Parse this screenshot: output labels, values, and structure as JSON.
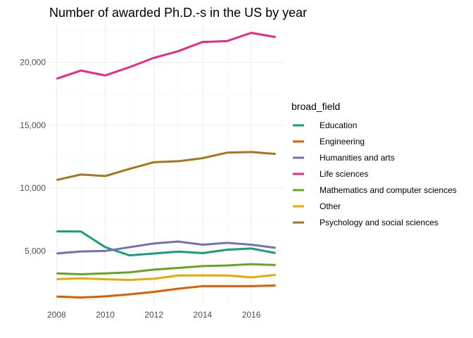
{
  "chart_data": {
    "type": "line",
    "title": "Number of awarded Ph.D.-s in the US by year",
    "xlabel": "",
    "ylabel": "",
    "x": [
      2008,
      2009,
      2010,
      2011,
      2012,
      2013,
      2014,
      2015,
      2016,
      2017
    ],
    "xlim": [
      2007.7,
      2017.3
    ],
    "ylim": [
      600,
      23000
    ],
    "x_ticks": [
      2008,
      2010,
      2012,
      2014,
      2016
    ],
    "x_tick_labels": [
      "2008",
      "2010",
      "2012",
      "2014",
      "2016"
    ],
    "y_ticks": [
      5000,
      10000,
      15000,
      20000
    ],
    "y_tick_labels": [
      "5,000",
      "10,000",
      "15,000",
      "20,000"
    ],
    "grid": true,
    "legend": {
      "title": "broad_field",
      "position": "right"
    },
    "series": [
      {
        "name": "Education",
        "color": "#1b9e77",
        "values": [
          6560,
          6550,
          5300,
          4650,
          4800,
          4950,
          4830,
          5100,
          5200,
          4830
        ]
      },
      {
        "name": "Engineering",
        "color": "#d95f02",
        "values": [
          1380,
          1300,
          1390,
          1550,
          1750,
          2000,
          2200,
          2200,
          2200,
          2260
        ]
      },
      {
        "name": "Humanities and arts",
        "color": "#7570b3",
        "values": [
          4800,
          4960,
          5000,
          5300,
          5600,
          5750,
          5500,
          5650,
          5500,
          5250
        ]
      },
      {
        "name": "Life sciences",
        "color": "#e7298a",
        "values": [
          18700,
          19350,
          18960,
          19620,
          20360,
          20890,
          21620,
          21690,
          22350,
          22010
        ]
      },
      {
        "name": "Mathematics and computer sciences",
        "color": "#66a61e",
        "values": [
          3220,
          3150,
          3220,
          3300,
          3520,
          3650,
          3800,
          3850,
          3950,
          3880
        ]
      },
      {
        "name": "Other",
        "color": "#e6ab02",
        "values": [
          2760,
          2820,
          2750,
          2700,
          2790,
          3050,
          3060,
          3050,
          2900,
          3100
        ]
      },
      {
        "name": "Psychology and social sciences",
        "color": "#a6761d",
        "values": [
          10650,
          11080,
          10960,
          11530,
          12060,
          12140,
          12380,
          12820,
          12870,
          12720
        ]
      }
    ]
  }
}
